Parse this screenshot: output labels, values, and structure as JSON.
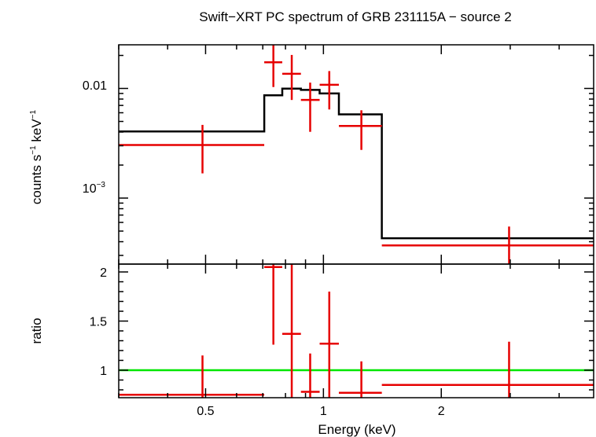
{
  "chart_data": {
    "type": "scatter",
    "title": "Swift−XRT PC spectrum of GRB 231115A − source 2",
    "xlabel": "Energy (keV)",
    "x_scale": "log",
    "xlim": [
      0.3,
      4.9
    ],
    "x_ticks": [
      0.5,
      1,
      2
    ],
    "x_tick_labels": [
      "0.5",
      "1",
      "2"
    ],
    "colors": {
      "data": "#e60000",
      "model": "#000000",
      "unity": "#00e600"
    },
    "top_panel": {
      "ylabel_main": "counts s",
      "ylabel_exp1": "−1",
      "ylabel_mid": " keV",
      "ylabel_exp2": "−1",
      "y_scale": "log",
      "ylim": [
        0.00025,
        0.025
      ],
      "y_tick_labels": {
        "t1": "0.01",
        "t2_base": "10",
        "t2_exp": "−3"
      },
      "data": [
        {
          "x": 0.491,
          "xlo": 0.3,
          "xhi": 0.706,
          "y": 0.00305,
          "ylo": 0.00168,
          "yhi": 0.00465
        },
        {
          "x": 0.745,
          "xlo": 0.706,
          "xhi": 0.785,
          "y": 0.0173,
          "ylo": 0.0103,
          "yhi": 0.0252
        },
        {
          "x": 0.83,
          "xlo": 0.785,
          "xhi": 0.876,
          "y": 0.0136,
          "ylo": 0.00785,
          "yhi": 0.0202
        },
        {
          "x": 0.925,
          "xlo": 0.876,
          "xhi": 0.978,
          "y": 0.00785,
          "ylo": 0.00402,
          "yhi": 0.0113
        },
        {
          "x": 1.035,
          "xlo": 0.978,
          "xhi": 1.095,
          "y": 0.0108,
          "ylo": 0.00643,
          "yhi": 0.0144
        },
        {
          "x": 1.25,
          "xlo": 1.095,
          "xhi": 1.41,
          "y": 0.00455,
          "ylo": 0.00275,
          "yhi": 0.00632
        },
        {
          "x": 2.98,
          "xlo": 1.41,
          "xhi": 4.9,
          "y": 0.00037,
          "ylo": 0.00025,
          "yhi": 0.00055
        }
      ],
      "model": [
        {
          "xlo": 0.3,
          "xhi": 0.706,
          "y": 0.00405
        },
        {
          "xlo": 0.706,
          "xhi": 0.785,
          "y": 0.00865
        },
        {
          "xlo": 0.785,
          "xhi": 0.876,
          "y": 0.00995
        },
        {
          "xlo": 0.876,
          "xhi": 0.978,
          "y": 0.0097
        },
        {
          "xlo": 0.978,
          "xhi": 1.095,
          "y": 0.009
        },
        {
          "xlo": 1.095,
          "xhi": 1.41,
          "y": 0.0058
        },
        {
          "xlo": 1.41,
          "xhi": 4.9,
          "y": 0.00043
        }
      ]
    },
    "bottom_panel": {
      "ylabel": "ratio",
      "y_scale": "linear",
      "ylim": [
        0.72,
        2.08
      ],
      "y_ticks": [
        1,
        1.5,
        2
      ],
      "y_tick_labels": [
        "1",
        "1.5",
        "2"
      ],
      "unity": 1,
      "data": [
        {
          "x": 0.491,
          "xlo": 0.3,
          "xhi": 0.706,
          "y": 0.75,
          "ylo": 0.72,
          "yhi": 1.15
        },
        {
          "x": 0.745,
          "xlo": 0.706,
          "xhi": 0.785,
          "y": 2.05,
          "ylo": 1.26,
          "yhi": 2.08
        },
        {
          "x": 0.83,
          "xlo": 0.785,
          "xhi": 0.876,
          "y": 1.37,
          "ylo": 0.72,
          "yhi": 2.08
        },
        {
          "x": 0.925,
          "xlo": 0.876,
          "xhi": 0.978,
          "y": 0.78,
          "ylo": 0.72,
          "yhi": 1.17
        },
        {
          "x": 1.035,
          "xlo": 0.978,
          "xhi": 1.095,
          "y": 1.27,
          "ylo": 0.72,
          "yhi": 1.8
        },
        {
          "x": 1.25,
          "xlo": 1.095,
          "xhi": 1.41,
          "y": 0.77,
          "ylo": 0.72,
          "yhi": 1.09
        },
        {
          "x": 2.98,
          "xlo": 1.41,
          "xhi": 4.9,
          "y": 0.85,
          "ylo": 0.72,
          "yhi": 1.29
        }
      ]
    }
  }
}
